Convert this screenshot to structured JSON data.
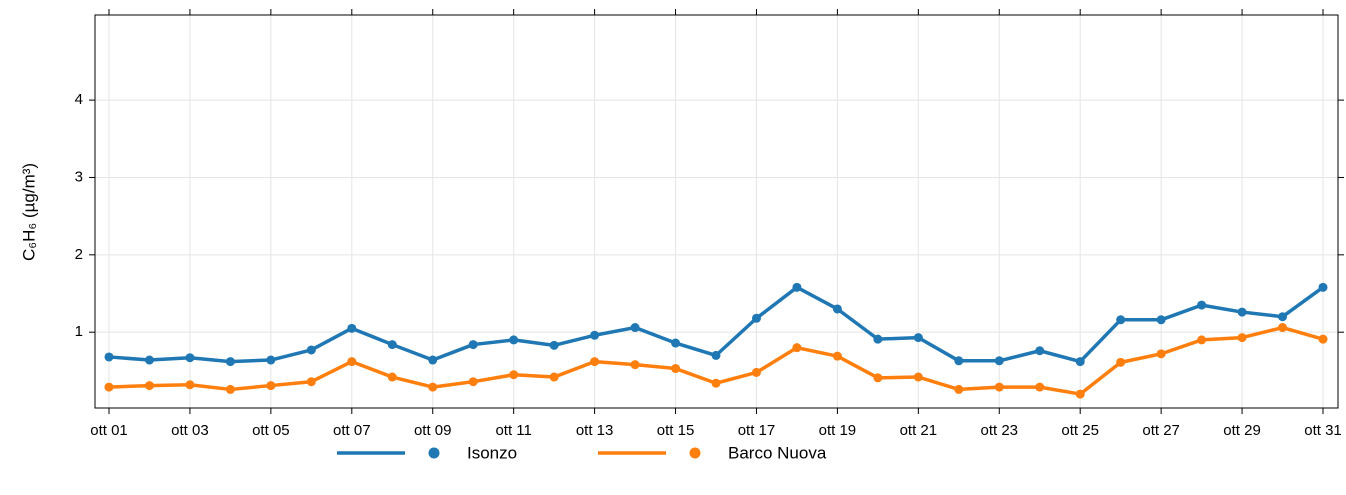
{
  "chart_data": {
    "type": "line",
    "ylabel": "C₆H₆ (µg/m³)",
    "categories": [
      "ott 01",
      null,
      "ott 03",
      null,
      "ott 05",
      null,
      "ott 07",
      null,
      "ott 09",
      null,
      "ott 11",
      null,
      "ott 13",
      null,
      "ott 15",
      null,
      "ott 17",
      null,
      "ott 19",
      null,
      "ott 21",
      null,
      "ott 23",
      null,
      "ott 25",
      null,
      "ott 27",
      null,
      "ott 29",
      null,
      "ott 31"
    ],
    "series": [
      {
        "name": "Isonzo",
        "color": "#1f77b4",
        "values": [
          0.68,
          0.64,
          0.67,
          0.62,
          0.64,
          0.77,
          1.05,
          0.84,
          0.64,
          0.84,
          0.9,
          0.83,
          0.96,
          1.06,
          0.86,
          0.7,
          1.18,
          1.58,
          1.3,
          0.91,
          0.93,
          0.63,
          0.63,
          0.76,
          0.62,
          1.16,
          1.16,
          1.35,
          1.26,
          1.2,
          1.58
        ]
      },
      {
        "name": "Barco Nuova",
        "color": "#ff7f0e",
        "values": [
          0.29,
          0.31,
          0.32,
          0.26,
          0.31,
          0.36,
          0.62,
          0.42,
          0.29,
          0.36,
          0.45,
          0.42,
          0.62,
          0.58,
          0.53,
          0.34,
          0.48,
          0.8,
          0.69,
          0.41,
          0.42,
          0.26,
          0.29,
          0.29,
          0.2,
          0.61,
          0.72,
          0.9,
          0.93,
          1.06,
          0.91
        ]
      }
    ],
    "ylim": [
      0.02,
      5.1
    ],
    "yticks": [
      1,
      2,
      3,
      4
    ],
    "grid": true,
    "legend": "bottom"
  }
}
